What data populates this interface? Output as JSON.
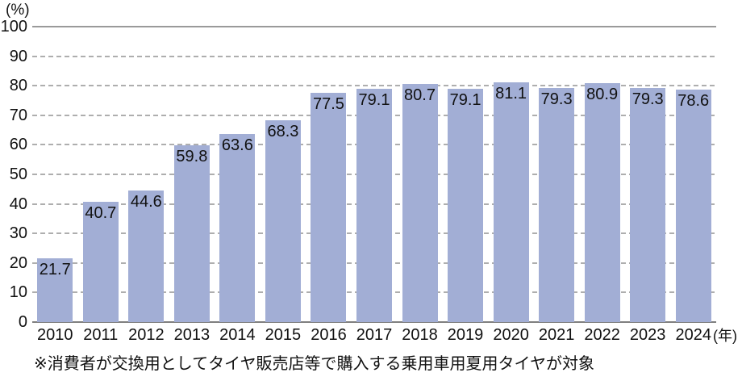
{
  "chart_data": {
    "type": "bar",
    "title": "",
    "y_unit_label": "(%)",
    "x_unit_label": "(年)",
    "categories": [
      "2010",
      "2011",
      "2012",
      "2013",
      "2014",
      "2015",
      "2016",
      "2017",
      "2018",
      "2019",
      "2020",
      "2021",
      "2022",
      "2023",
      "2024"
    ],
    "values": [
      21.7,
      40.7,
      44.6,
      59.8,
      63.6,
      68.3,
      77.5,
      79.1,
      80.7,
      79.1,
      81.1,
      79.3,
      80.9,
      79.3,
      78.6
    ],
    "ylim": [
      0,
      100
    ],
    "ytick_step": 10,
    "grid": "horizontal dashed, solid line at 100 and baseline at 0",
    "legend": "none",
    "bar_color": "#a2aed5",
    "value_label_color": "#111111",
    "grid_color": "#aeaeae",
    "top_line_color": "#9a9a9a",
    "baseline_color": "#7f7f7f"
  },
  "footnote": "※消費者が交換用としてタイヤ販売店等で購入する乗用車用夏用タイヤが対象"
}
